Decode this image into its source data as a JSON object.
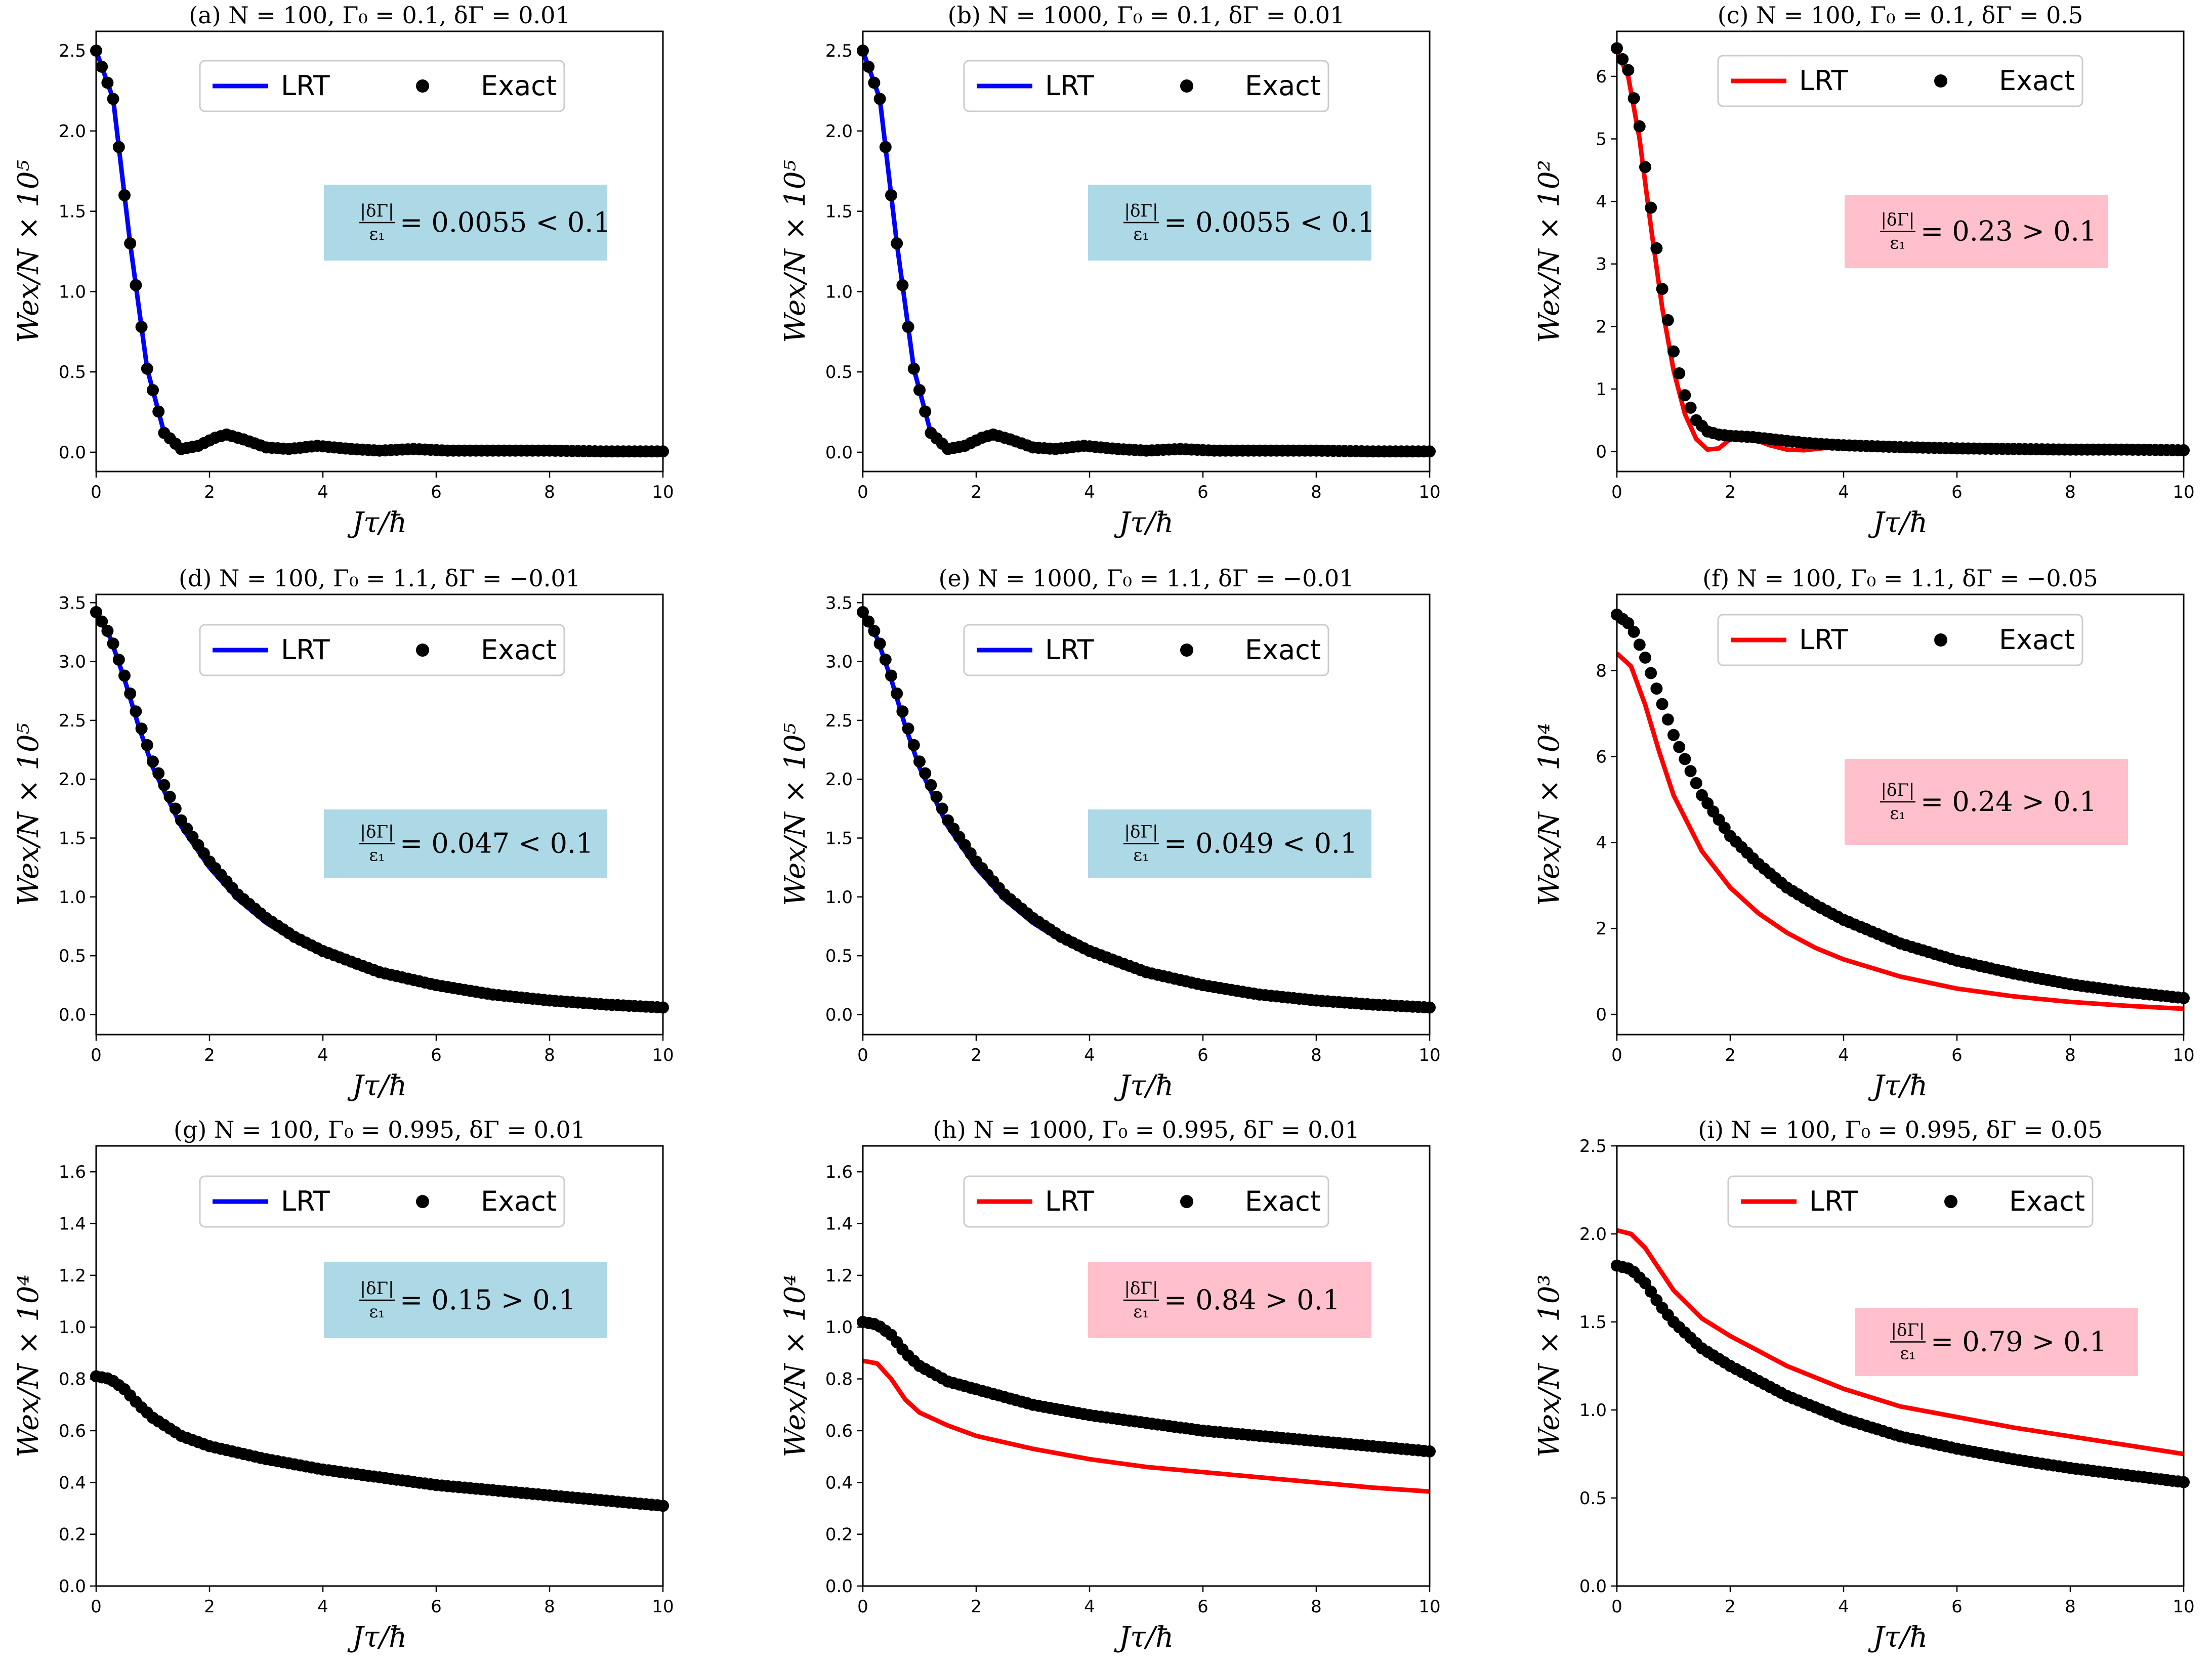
{
  "figure": {
    "x_label": "Jτ/ħ",
    "colors": {
      "lrt_blue": "#0000ff",
      "lrt_red": "#ff0000",
      "exact": "#000000",
      "box_blue": "#add8e6",
      "box_pink": "#ffc0cb"
    }
  },
  "chart_data": [
    {
      "type": "line",
      "title": "(a) N = 100,    Γ₀ = 0.1,    δΓ = 0.01",
      "xlabel": "Jτ/ħ",
      "ylabel": "Wex/N × 10⁵",
      "xlim": [
        0,
        10
      ],
      "ylim": [
        -0.12,
        2.62
      ],
      "xticks": [
        "0",
        "2",
        "4",
        "6",
        "8",
        "10"
      ],
      "yticks": [
        "0.0",
        "0.5",
        "1.0",
        "1.5",
        "2.0",
        "2.5"
      ],
      "ytick_values": [
        0,
        0.5,
        1,
        1.5,
        2,
        2.5
      ],
      "legend": [
        "LRT",
        "Exact"
      ],
      "lrt_color": "#0000ff",
      "box_color": "#add8e6",
      "annotation": {
        "frac_num": "|δΓ|",
        "frac_den": "ε₁",
        "rest": "= 0.0055 < 0.1"
      },
      "lrt": {
        "x": [
          0,
          0.3,
          0.6,
          0.9,
          1.2,
          1.5,
          1.8,
          2.1,
          2.3,
          2.6,
          3,
          3.4,
          3.9,
          4.5,
          5,
          5.6,
          6.2,
          7,
          8,
          9,
          10
        ],
        "y": [
          2.5,
          2.2,
          1.3,
          0.52,
          0.12,
          0.02,
          0.04,
          0.09,
          0.11,
          0.08,
          0.03,
          0.02,
          0.04,
          0.02,
          0.01,
          0.02,
          0.01,
          0.01,
          0.01,
          0.005,
          0.005
        ]
      },
      "exact": {
        "x": [
          0,
          0.3,
          0.6,
          0.9,
          1.2,
          1.5,
          1.8,
          2.1,
          2.3,
          2.6,
          3,
          3.4,
          3.9,
          4.5,
          5,
          5.6,
          6.2,
          7,
          8,
          9,
          10
        ],
        "y": [
          2.5,
          2.2,
          1.3,
          0.52,
          0.12,
          0.02,
          0.04,
          0.09,
          0.11,
          0.08,
          0.03,
          0.02,
          0.04,
          0.02,
          0.01,
          0.02,
          0.01,
          0.01,
          0.01,
          0.005,
          0.005
        ]
      }
    },
    {
      "type": "line",
      "title": "(b) N = 1000,    Γ₀ = 0.1,    δΓ = 0.01",
      "xlabel": "Jτ/ħ",
      "ylabel": "Wex/N × 10⁵",
      "xlim": [
        0,
        10
      ],
      "ylim": [
        -0.12,
        2.62
      ],
      "xticks": [
        "0",
        "2",
        "4",
        "6",
        "8",
        "10"
      ],
      "yticks": [
        "0.0",
        "0.5",
        "1.0",
        "1.5",
        "2.0",
        "2.5"
      ],
      "ytick_values": [
        0,
        0.5,
        1,
        1.5,
        2,
        2.5
      ],
      "legend": [
        "LRT",
        "Exact"
      ],
      "lrt_color": "#0000ff",
      "box_color": "#add8e6",
      "annotation": {
        "frac_num": "|δΓ|",
        "frac_den": "ε₁",
        "rest": "= 0.0055 < 0.1"
      },
      "lrt": {
        "x": [
          0,
          0.3,
          0.6,
          0.9,
          1.2,
          1.5,
          1.8,
          2.1,
          2.3,
          2.6,
          3,
          3.4,
          3.9,
          4.5,
          5,
          5.6,
          6.2,
          7,
          8,
          9,
          10
        ],
        "y": [
          2.5,
          2.2,
          1.3,
          0.52,
          0.12,
          0.02,
          0.04,
          0.09,
          0.11,
          0.08,
          0.03,
          0.02,
          0.04,
          0.02,
          0.01,
          0.02,
          0.01,
          0.01,
          0.01,
          0.005,
          0.005
        ]
      },
      "exact": {
        "x": [
          0,
          0.3,
          0.6,
          0.9,
          1.2,
          1.5,
          1.8,
          2.1,
          2.3,
          2.6,
          3,
          3.4,
          3.9,
          4.5,
          5,
          5.6,
          6.2,
          7,
          8,
          9,
          10
        ],
        "y": [
          2.5,
          2.2,
          1.3,
          0.52,
          0.12,
          0.02,
          0.04,
          0.09,
          0.11,
          0.08,
          0.03,
          0.02,
          0.04,
          0.02,
          0.01,
          0.02,
          0.01,
          0.01,
          0.01,
          0.005,
          0.005
        ]
      }
    },
    {
      "type": "line",
      "title": "(c) N = 100,    Γ₀ = 0.1,    δΓ = 0.5",
      "xlabel": "Jτ/ħ",
      "ylabel": "Wex/N × 10²",
      "xlim": [
        0,
        10
      ],
      "ylim": [
        -0.32,
        6.72
      ],
      "xticks": [
        "0",
        "2",
        "4",
        "6",
        "8",
        "10"
      ],
      "yticks": [
        "0",
        "1",
        "2",
        "3",
        "4",
        "5",
        "6"
      ],
      "ytick_values": [
        0,
        1,
        2,
        3,
        4,
        5,
        6
      ],
      "legend": [
        "LRT",
        "Exact"
      ],
      "lrt_color": "#ff0000",
      "box_color": "#ffc0cb",
      "annotation": {
        "frac_num": "|δΓ|",
        "frac_den": "ε₁",
        "rest": "= 0.23 > 0.1"
      },
      "lrt": {
        "x": [
          0,
          0.2,
          0.4,
          0.6,
          0.8,
          1,
          1.2,
          1.4,
          1.6,
          1.8,
          2,
          2.2,
          2.4,
          2.7,
          3,
          3.3,
          3.6,
          4,
          5,
          6,
          7,
          8,
          9,
          10
        ],
        "y": [
          6.4,
          6.0,
          5.0,
          3.6,
          2.3,
          1.3,
          0.6,
          0.2,
          0.03,
          0.05,
          0.2,
          0.25,
          0.2,
          0.1,
          0.03,
          0.02,
          0.05,
          0.08,
          0.06,
          0.05,
          0.04,
          0.03,
          0.03,
          0.02
        ]
      },
      "exact": {
        "x": [
          0,
          0.2,
          0.4,
          0.6,
          0.8,
          1,
          1.2,
          1.4,
          1.6,
          1.8,
          2,
          2.2,
          2.4,
          2.7,
          3,
          3.3,
          3.6,
          4,
          5,
          6,
          7,
          8,
          9,
          10
        ],
        "y": [
          6.45,
          6.1,
          5.2,
          3.9,
          2.6,
          1.6,
          0.9,
          0.5,
          0.32,
          0.27,
          0.25,
          0.24,
          0.23,
          0.2,
          0.17,
          0.14,
          0.12,
          0.1,
          0.07,
          0.05,
          0.04,
          0.03,
          0.03,
          0.02
        ]
      }
    },
    {
      "type": "line",
      "title": "(d) N = 100,    Γ₀ = 1.1,    δΓ = −0.01",
      "xlabel": "Jτ/ħ",
      "ylabel": "Wex/N × 10⁵",
      "xlim": [
        0,
        10
      ],
      "ylim": [
        -0.17,
        3.57
      ],
      "xticks": [
        "0",
        "2",
        "4",
        "6",
        "8",
        "10"
      ],
      "yticks": [
        "0.0",
        "0.5",
        "1.0",
        "1.5",
        "2.0",
        "2.5",
        "3.0",
        "3.5"
      ],
      "ytick_values": [
        0,
        0.5,
        1,
        1.5,
        2,
        2.5,
        3,
        3.5
      ],
      "legend": [
        "LRT",
        "Exact"
      ],
      "lrt_color": "#0000ff",
      "box_color": "#add8e6",
      "annotation": {
        "frac_num": "|δΓ|",
        "frac_den": "ε₁",
        "rest": "= 0.047 < 0.1"
      },
      "lrt": {
        "x": [
          0,
          0.25,
          0.5,
          0.75,
          1,
          1.5,
          2,
          2.5,
          3,
          3.5,
          4,
          5,
          6,
          7,
          8,
          9,
          10
        ],
        "y": [
          3.42,
          3.2,
          2.85,
          2.45,
          2.1,
          1.6,
          1.25,
          0.98,
          0.78,
          0.63,
          0.51,
          0.34,
          0.23,
          0.16,
          0.11,
          0.08,
          0.06
        ]
      },
      "exact": {
        "x": [
          0,
          0.25,
          0.5,
          0.75,
          1,
          1.5,
          2,
          2.5,
          3,
          3.5,
          4,
          5,
          6,
          7,
          8,
          9,
          10
        ],
        "y": [
          3.42,
          3.22,
          2.88,
          2.5,
          2.15,
          1.65,
          1.3,
          1.02,
          0.82,
          0.66,
          0.54,
          0.36,
          0.25,
          0.17,
          0.12,
          0.085,
          0.06
        ]
      }
    },
    {
      "type": "line",
      "title": "(e) N = 1000,    Γ₀ = 1.1,    δΓ = −0.01",
      "xlabel": "Jτ/ħ",
      "ylabel": "Wex/N × 10⁵",
      "xlim": [
        0,
        10
      ],
      "ylim": [
        -0.17,
        3.57
      ],
      "xticks": [
        "0",
        "2",
        "4",
        "6",
        "8",
        "10"
      ],
      "yticks": [
        "0.0",
        "0.5",
        "1.0",
        "1.5",
        "2.0",
        "2.5",
        "3.0",
        "3.5"
      ],
      "ytick_values": [
        0,
        0.5,
        1,
        1.5,
        2,
        2.5,
        3,
        3.5
      ],
      "legend": [
        "LRT",
        "Exact"
      ],
      "lrt_color": "#0000ff",
      "box_color": "#add8e6",
      "annotation": {
        "frac_num": "|δΓ|",
        "frac_den": "ε₁",
        "rest": "= 0.049 < 0.1"
      },
      "lrt": {
        "x": [
          0,
          0.25,
          0.5,
          0.75,
          1,
          1.5,
          2,
          2.5,
          3,
          3.5,
          4,
          5,
          6,
          7,
          8,
          9,
          10
        ],
        "y": [
          3.42,
          3.2,
          2.85,
          2.45,
          2.1,
          1.6,
          1.25,
          0.98,
          0.78,
          0.63,
          0.51,
          0.34,
          0.23,
          0.16,
          0.11,
          0.08,
          0.06
        ]
      },
      "exact": {
        "x": [
          0,
          0.25,
          0.5,
          0.75,
          1,
          1.5,
          2,
          2.5,
          3,
          3.5,
          4,
          5,
          6,
          7,
          8,
          9,
          10
        ],
        "y": [
          3.42,
          3.22,
          2.88,
          2.5,
          2.15,
          1.65,
          1.3,
          1.02,
          0.82,
          0.66,
          0.54,
          0.36,
          0.25,
          0.17,
          0.12,
          0.085,
          0.06
        ]
      }
    },
    {
      "type": "line",
      "title": "(f) N = 100,    Γ₀ = 1.1,    δΓ = −0.05",
      "xlabel": "Jτ/ħ",
      "ylabel": "Wex/N × 10⁴",
      "xlim": [
        0,
        10
      ],
      "ylim": [
        -0.47,
        9.77
      ],
      "xticks": [
        "0",
        "2",
        "4",
        "6",
        "8",
        "10"
      ],
      "yticks": [
        "0",
        "2",
        "4",
        "6",
        "8"
      ],
      "ytick_values": [
        0,
        2,
        4,
        6,
        8
      ],
      "legend": [
        "LRT",
        "Exact"
      ],
      "lrt_color": "#ff0000",
      "box_color": "#ffc0cb",
      "annotation": {
        "frac_num": "|δΓ|",
        "frac_den": "ε₁",
        "rest": "= 0.24 > 0.1"
      },
      "lrt": {
        "x": [
          0,
          0.25,
          0.5,
          0.75,
          1,
          1.5,
          2,
          2.5,
          3,
          3.5,
          4,
          5,
          6,
          7,
          8,
          9,
          10
        ],
        "y": [
          8.4,
          8.1,
          7.2,
          6.1,
          5.1,
          3.8,
          2.95,
          2.35,
          1.9,
          1.55,
          1.28,
          0.88,
          0.6,
          0.42,
          0.29,
          0.2,
          0.13
        ]
      },
      "exact": {
        "x": [
          0,
          0.25,
          0.5,
          0.75,
          1,
          1.5,
          2,
          2.5,
          3,
          3.5,
          4,
          5,
          6,
          7,
          8,
          9,
          10
        ],
        "y": [
          9.3,
          9.05,
          8.3,
          7.4,
          6.5,
          5.1,
          4.15,
          3.5,
          2.95,
          2.55,
          2.2,
          1.65,
          1.25,
          0.95,
          0.7,
          0.52,
          0.38
        ]
      }
    },
    {
      "type": "line",
      "title": "(g) N = 100,    Γ₀ = 0.995,    δΓ = 0.01",
      "xlabel": "Jτ/ħ",
      "ylabel": "Wex/N × 10⁴",
      "xlim": [
        0,
        10
      ],
      "ylim": [
        0,
        1.7
      ],
      "xticks": [
        "0",
        "2",
        "4",
        "6",
        "8",
        "10"
      ],
      "yticks": [
        "0.0",
        "0.2",
        "0.4",
        "0.6",
        "0.8",
        "1.0",
        "1.2",
        "1.4",
        "1.6"
      ],
      "ytick_values": [
        0,
        0.2,
        0.4,
        0.6,
        0.8,
        1,
        1.2,
        1.4,
        1.6
      ],
      "legend": [
        "LRT",
        "Exact"
      ],
      "lrt_color": "#0000ff",
      "box_color": "#add8e6",
      "annotation": {
        "frac_num": "|δΓ|",
        "frac_den": "ε₁",
        "rest": "= 0.15 > 0.1"
      },
      "lrt": {
        "x": [
          0,
          0.25,
          0.5,
          0.75,
          1,
          1.5,
          2,
          3,
          4,
          5,
          6,
          7,
          8,
          9,
          10
        ],
        "y": [
          0.81,
          0.8,
          0.76,
          0.7,
          0.65,
          0.58,
          0.54,
          0.49,
          0.45,
          0.42,
          0.39,
          0.37,
          0.35,
          0.33,
          0.31
        ]
      },
      "exact": {
        "x": [
          0,
          0.25,
          0.5,
          0.75,
          1,
          1.5,
          2,
          3,
          4,
          5,
          6,
          7,
          8,
          9,
          10
        ],
        "y": [
          0.81,
          0.8,
          0.76,
          0.7,
          0.65,
          0.58,
          0.54,
          0.49,
          0.45,
          0.42,
          0.39,
          0.37,
          0.35,
          0.33,
          0.31
        ]
      }
    },
    {
      "type": "line",
      "title": "(h) N = 1000,    Γ₀ = 0.995,    δΓ = 0.01",
      "xlabel": "Jτ/ħ",
      "ylabel": "Wex/N × 10⁴",
      "xlim": [
        0,
        10
      ],
      "ylim": [
        0,
        1.7
      ],
      "xticks": [
        "0",
        "2",
        "4",
        "6",
        "8",
        "10"
      ],
      "yticks": [
        "0.0",
        "0.2",
        "0.4",
        "0.6",
        "0.8",
        "1.0",
        "1.2",
        "1.4",
        "1.6"
      ],
      "ytick_values": [
        0,
        0.2,
        0.4,
        0.6,
        0.8,
        1,
        1.2,
        1.4,
        1.6
      ],
      "legend": [
        "LRT",
        "Exact"
      ],
      "lrt_color": "#ff0000",
      "box_color": "#ffc0cb",
      "annotation": {
        "frac_num": "|δΓ|",
        "frac_den": "ε₁",
        "rest": "= 0.84 > 0.1"
      },
      "lrt": {
        "x": [
          0,
          0.25,
          0.5,
          0.75,
          1,
          1.5,
          2,
          3,
          4,
          5,
          6,
          7,
          8,
          9,
          10
        ],
        "y": [
          0.87,
          0.86,
          0.8,
          0.72,
          0.67,
          0.62,
          0.58,
          0.53,
          0.49,
          0.46,
          0.44,
          0.42,
          0.4,
          0.38,
          0.365
        ]
      },
      "exact": {
        "x": [
          0,
          0.25,
          0.5,
          0.75,
          1,
          1.5,
          2,
          3,
          4,
          5,
          6,
          7,
          8,
          9,
          10
        ],
        "y": [
          1.02,
          1.01,
          0.97,
          0.9,
          0.85,
          0.79,
          0.76,
          0.7,
          0.66,
          0.63,
          0.6,
          0.58,
          0.56,
          0.54,
          0.52
        ]
      }
    },
    {
      "type": "line",
      "title": "(i) N = 100,    Γ₀ = 0.995,    δΓ = 0.05",
      "xlabel": "Jτ/ħ",
      "ylabel": "Wex/N × 10³",
      "xlim": [
        0,
        10
      ],
      "ylim": [
        0,
        2.5
      ],
      "xticks": [
        "0",
        "2",
        "4",
        "6",
        "8",
        "10"
      ],
      "yticks": [
        "0.0",
        "0.5",
        "1.0",
        "1.5",
        "2.0",
        "2.5"
      ],
      "ytick_values": [
        0,
        0.5,
        1,
        1.5,
        2,
        2.5
      ],
      "legend": [
        "LRT",
        "Exact"
      ],
      "lrt_color": "#ff0000",
      "box_color": "#ffc0cb",
      "annotation": {
        "frac_num": "|δΓ|",
        "frac_den": "ε₁",
        "rest": "= 0.79 > 0.1"
      },
      "lrt": {
        "x": [
          0,
          0.25,
          0.5,
          0.75,
          1,
          1.5,
          2,
          3,
          4,
          5,
          6,
          7,
          8,
          9,
          10
        ],
        "y": [
          2.02,
          2.0,
          1.92,
          1.8,
          1.68,
          1.52,
          1.42,
          1.25,
          1.12,
          1.02,
          0.96,
          0.9,
          0.85,
          0.8,
          0.75
        ]
      },
      "exact": {
        "x": [
          0,
          0.25,
          0.5,
          0.75,
          1,
          1.5,
          2,
          3,
          4,
          5,
          6,
          7,
          8,
          9,
          10
        ],
        "y": [
          1.82,
          1.8,
          1.72,
          1.6,
          1.5,
          1.35,
          1.25,
          1.08,
          0.95,
          0.85,
          0.78,
          0.72,
          0.67,
          0.63,
          0.59
        ]
      }
    }
  ]
}
